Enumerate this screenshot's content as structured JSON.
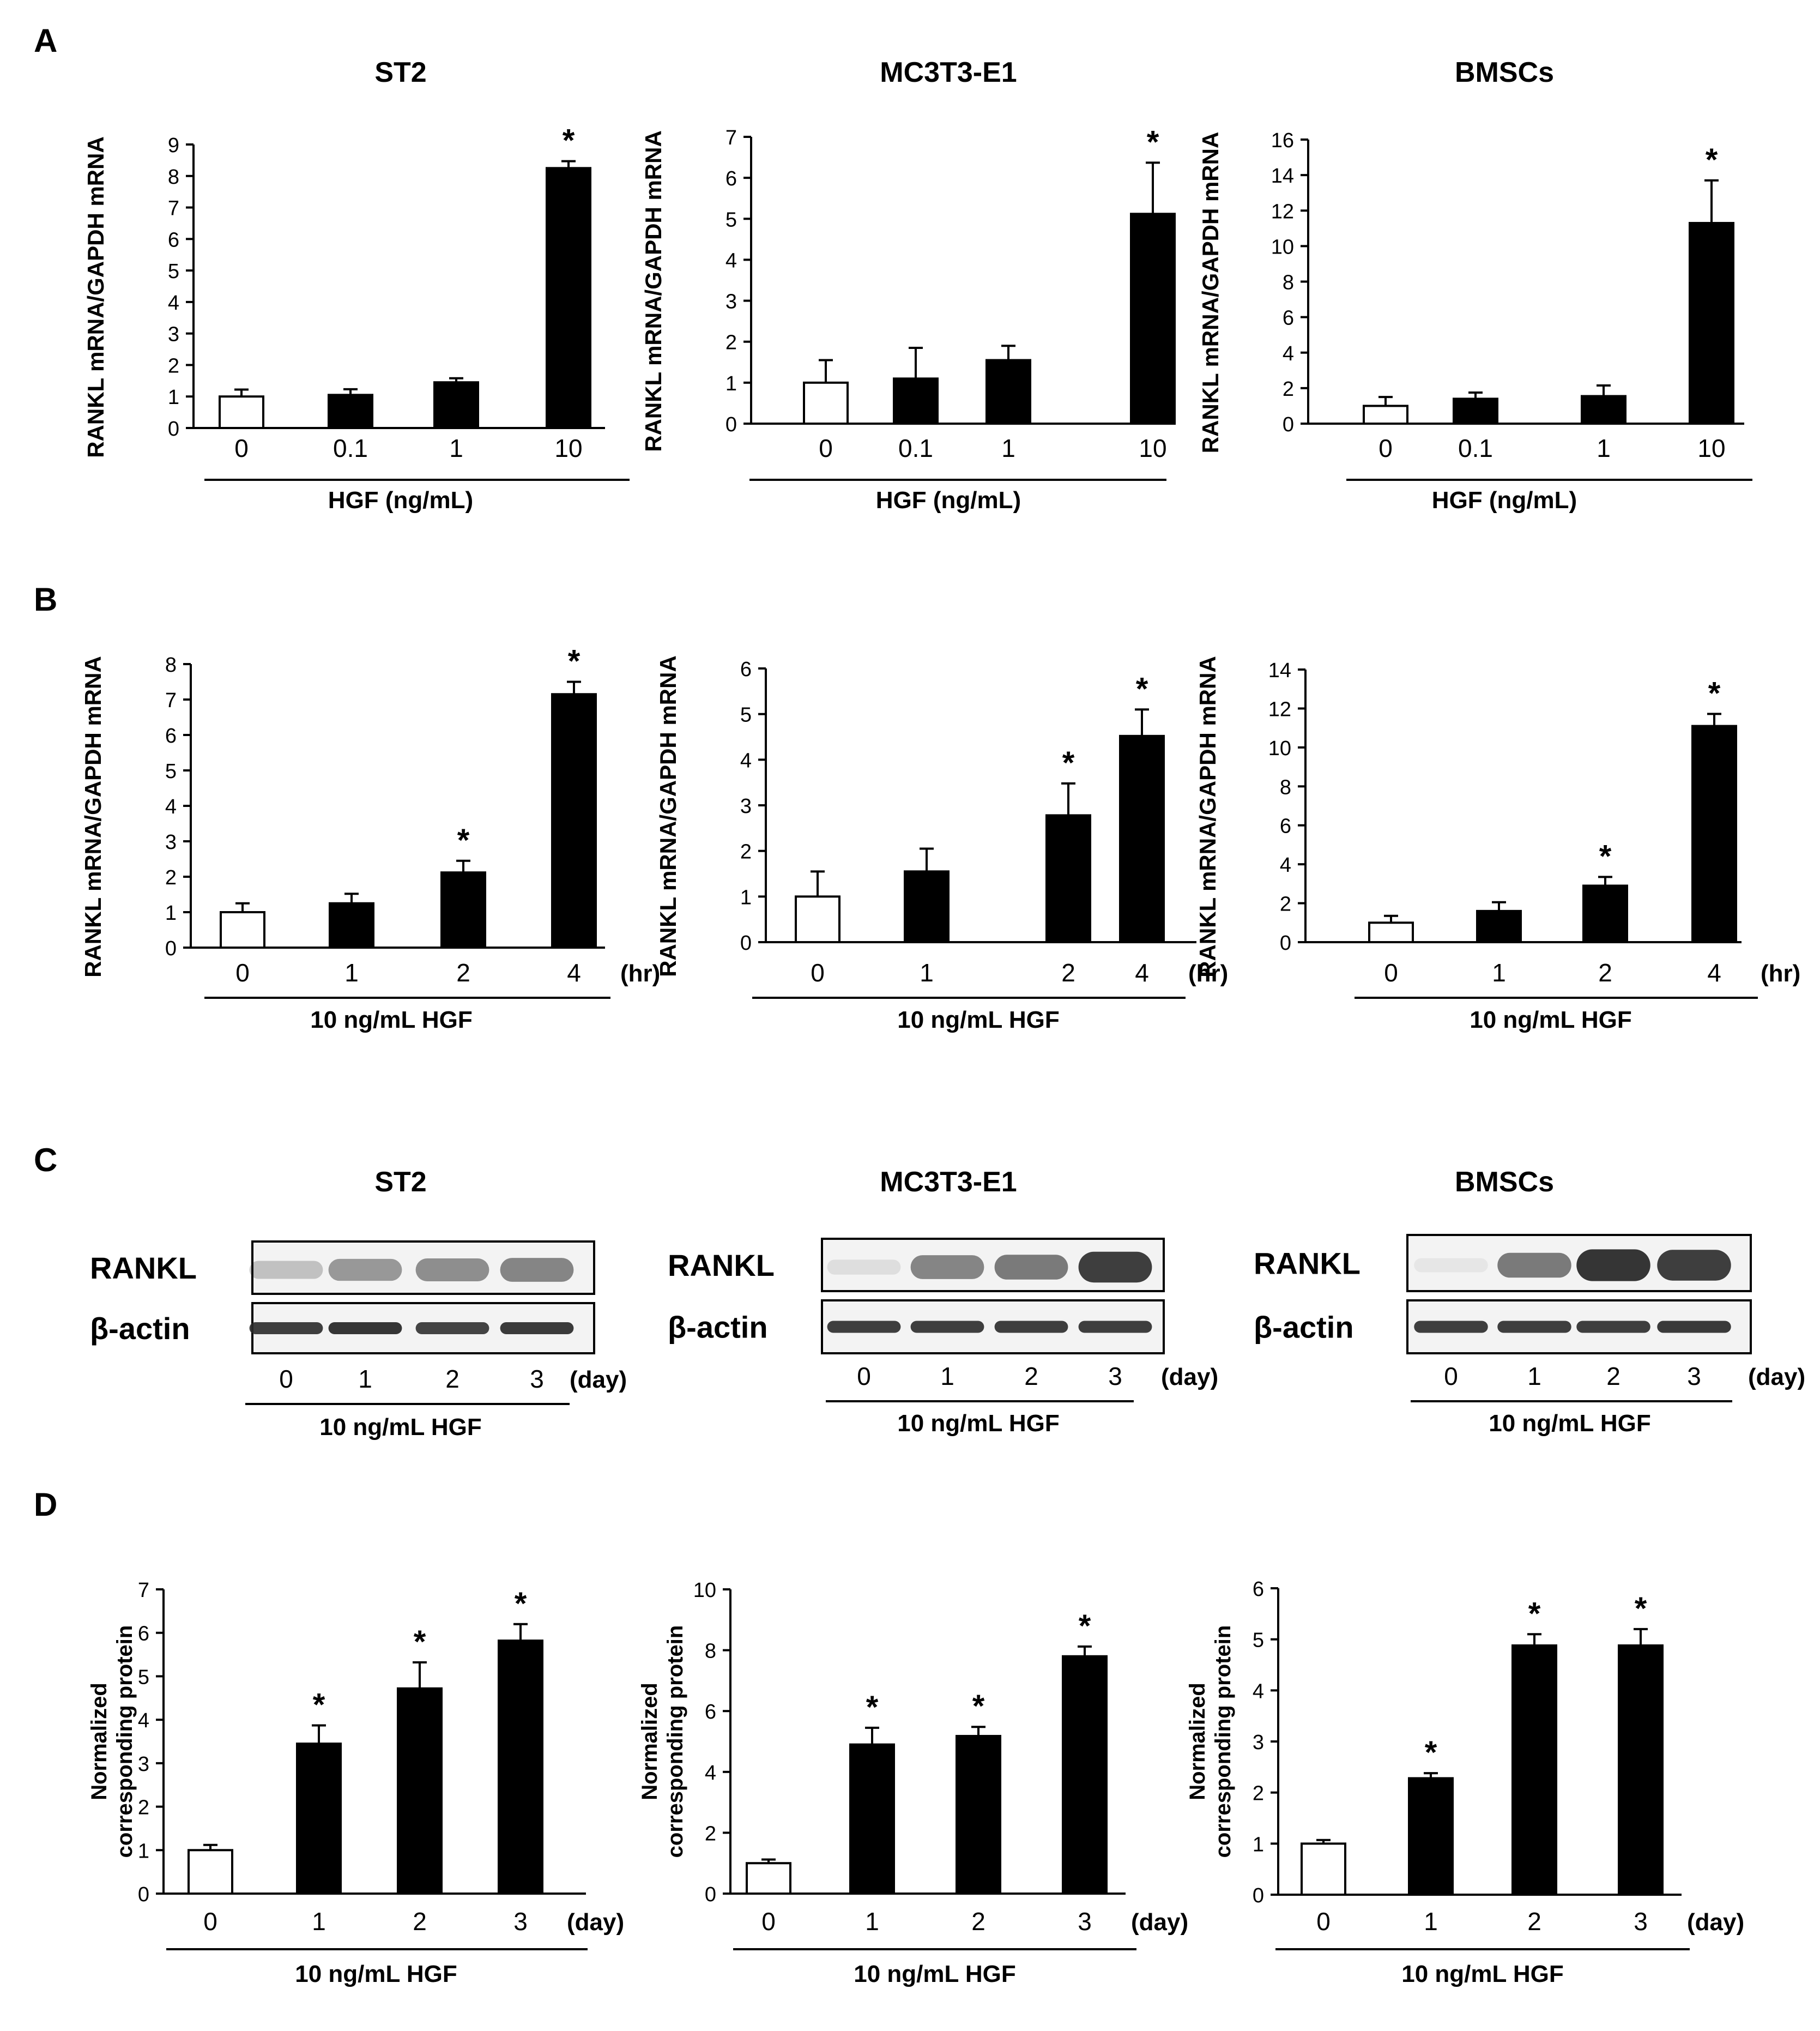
{
  "colors": {
    "ink": "#000000",
    "control_fill": "#ffffff",
    "treated_fill": "#000000",
    "blot_bg": "#f3f3f3",
    "band": "#2a2a2a"
  },
  "panels": {
    "A": {
      "letter": "A",
      "titles": [
        "ST2",
        "MC3T3-E1",
        "BMSCs"
      ]
    },
    "B": {
      "letter": "B"
    },
    "C": {
      "letter": "C",
      "titles": [
        "ST2",
        "MC3T3-E1",
        "BMSCs"
      ]
    },
    "D": {
      "letter": "D"
    }
  },
  "chart_data": [
    {
      "id": "A1",
      "type": "bar",
      "title": "ST2",
      "ylabel": "RANKL mRNA/GAPDH mRNA",
      "ylim": [
        0,
        9
      ],
      "yticks": [
        0,
        1,
        2,
        3,
        4,
        5,
        6,
        7,
        8,
        9
      ],
      "categories": [
        "0",
        "0.1",
        "1",
        "10"
      ],
      "values": [
        1.0,
        1.05,
        1.45,
        8.25
      ],
      "errors": [
        0.22,
        0.18,
        0.13,
        0.22
      ],
      "significant": [
        false,
        false,
        false,
        true
      ],
      "star": "*",
      "unit": "",
      "group_label": "HGF (ng/mL)"
    },
    {
      "id": "A2",
      "type": "bar",
      "title": "MC3T3-E1",
      "ylabel": "RANKL mRNA/GAPDH mRNA",
      "ylim": [
        0,
        7
      ],
      "yticks": [
        0,
        1,
        2,
        3,
        4,
        5,
        6,
        7
      ],
      "categories": [
        "0",
        "0.1",
        "1",
        "10"
      ],
      "values": [
        1.0,
        1.1,
        1.55,
        5.12
      ],
      "errors": [
        0.55,
        0.75,
        0.35,
        1.25
      ],
      "significant": [
        false,
        false,
        false,
        true
      ],
      "star": "*",
      "unit": "",
      "group_label": "HGF (ng/mL)"
    },
    {
      "id": "A3",
      "type": "bar",
      "title": "BMSCs",
      "ylabel": "RANKL mRNA/GAPDH mRNA",
      "ylim": [
        0,
        16
      ],
      "yticks": [
        0,
        2,
        4,
        6,
        8,
        10,
        12,
        14,
        16
      ],
      "categories": [
        "0",
        "0.1",
        "1",
        "10"
      ],
      "values": [
        1.0,
        1.4,
        1.55,
        11.3
      ],
      "errors": [
        0.5,
        0.35,
        0.6,
        2.4
      ],
      "significant": [
        false,
        false,
        false,
        true
      ],
      "star": "*",
      "unit": "",
      "group_label": "HGF (ng/mL)"
    },
    {
      "id": "B1",
      "type": "bar",
      "ylabel": "RANKL mRNA/GAPDH mRNA",
      "ylim": [
        0,
        8
      ],
      "yticks": [
        0,
        1,
        2,
        3,
        4,
        5,
        6,
        7,
        8
      ],
      "categories": [
        "0",
        "1",
        "2",
        "4"
      ],
      "values": [
        1.0,
        1.25,
        2.12,
        7.15
      ],
      "errors": [
        0.25,
        0.27,
        0.33,
        0.35
      ],
      "significant": [
        false,
        false,
        true,
        true
      ],
      "star": "*",
      "unit": "(hr)",
      "group_label": "10 ng/mL HGF"
    },
    {
      "id": "B2",
      "type": "bar",
      "ylabel": "RANKL mRNA/GAPDH mRNA",
      "ylim": [
        0,
        6
      ],
      "yticks": [
        0,
        1,
        2,
        3,
        4,
        5,
        6
      ],
      "categories": [
        "0",
        "1",
        "2",
        "4"
      ],
      "values": [
        1.0,
        1.55,
        2.78,
        4.52
      ],
      "errors": [
        0.55,
        0.5,
        0.7,
        0.58
      ],
      "significant": [
        false,
        false,
        true,
        true
      ],
      "star": "*",
      "unit": "(hr)",
      "group_label": "10 ng/mL HGF"
    },
    {
      "id": "B3",
      "type": "bar",
      "ylabel": "RANKL mRNA/GAPDH mRNA",
      "ylim": [
        0,
        14
      ],
      "yticks": [
        0,
        2,
        4,
        6,
        8,
        10,
        12,
        14
      ],
      "categories": [
        "0",
        "1",
        "2",
        "4"
      ],
      "values": [
        1.0,
        1.6,
        2.9,
        11.1
      ],
      "errors": [
        0.35,
        0.45,
        0.45,
        0.62
      ],
      "significant": [
        false,
        false,
        true,
        true
      ],
      "star": "*",
      "unit": "(hr)",
      "group_label": "10 ng/mL HGF"
    },
    {
      "id": "D1",
      "type": "bar",
      "ylabel": "Normalized corresponding protein",
      "ylim": [
        0,
        7
      ],
      "yticks": [
        0,
        1,
        2,
        3,
        4,
        5,
        6,
        7
      ],
      "categories": [
        "0",
        "1",
        "2",
        "3"
      ],
      "values": [
        1.0,
        3.45,
        4.72,
        5.82
      ],
      "errors": [
        0.12,
        0.42,
        0.6,
        0.38
      ],
      "significant": [
        false,
        true,
        true,
        true
      ],
      "star": "*",
      "unit": "(day)",
      "group_label": "10 ng/mL HGF"
    },
    {
      "id": "D2",
      "type": "bar",
      "ylabel": "Normalized corresponding protein",
      "ylim": [
        0,
        10
      ],
      "yticks": [
        0,
        2,
        4,
        6,
        8,
        10
      ],
      "categories": [
        "0",
        "1",
        "2",
        "3"
      ],
      "values": [
        1.0,
        4.9,
        5.18,
        7.8
      ],
      "errors": [
        0.12,
        0.55,
        0.3,
        0.32
      ],
      "significant": [
        false,
        true,
        true,
        true
      ],
      "star": "*",
      "unit": "(day)",
      "group_label": "10 ng/mL HGF"
    },
    {
      "id": "D3",
      "type": "bar",
      "ylabel": "Normalized corresponding protein",
      "ylim": [
        0,
        6
      ],
      "yticks": [
        0,
        1,
        2,
        3,
        4,
        5,
        6
      ],
      "categories": [
        "0",
        "1",
        "2",
        "3"
      ],
      "values": [
        1.0,
        2.28,
        4.88,
        4.88
      ],
      "errors": [
        0.07,
        0.1,
        0.22,
        0.32
      ],
      "significant": [
        false,
        true,
        true,
        true
      ],
      "star": "*",
      "unit": "(day)",
      "group_label": "10 ng/mL HGF"
    }
  ],
  "blots": [
    {
      "id": "C1",
      "title": "ST2",
      "rows": [
        "RANKL",
        "β-actin"
      ],
      "lanes": [
        "0",
        "1",
        "2",
        "3"
      ],
      "unit": "(day)",
      "group_label": "10 ng/mL HGF",
      "rankl_intensity": [
        0.25,
        0.45,
        0.5,
        0.55
      ],
      "actin_intensity": [
        0.9,
        0.95,
        0.88,
        0.92
      ]
    },
    {
      "id": "C2",
      "title": "MC3T3-E1",
      "rows": [
        "RANKL",
        "β-actin"
      ],
      "lanes": [
        "0",
        "1",
        "2",
        "3"
      ],
      "unit": "(day)",
      "group_label": "10 ng/mL HGF",
      "rankl_intensity": [
        0.1,
        0.55,
        0.6,
        0.9
      ],
      "actin_intensity": [
        0.9,
        0.9,
        0.9,
        0.9
      ]
    },
    {
      "id": "C3",
      "title": "BMSCs",
      "rows": [
        "RANKL",
        "β-actin"
      ],
      "lanes": [
        "0",
        "1",
        "2",
        "3"
      ],
      "unit": "(day)",
      "group_label": "10 ng/mL HGF",
      "rankl_intensity": [
        0.05,
        0.6,
        0.95,
        0.9
      ],
      "actin_intensity": [
        0.9,
        0.9,
        0.9,
        0.92
      ]
    }
  ]
}
